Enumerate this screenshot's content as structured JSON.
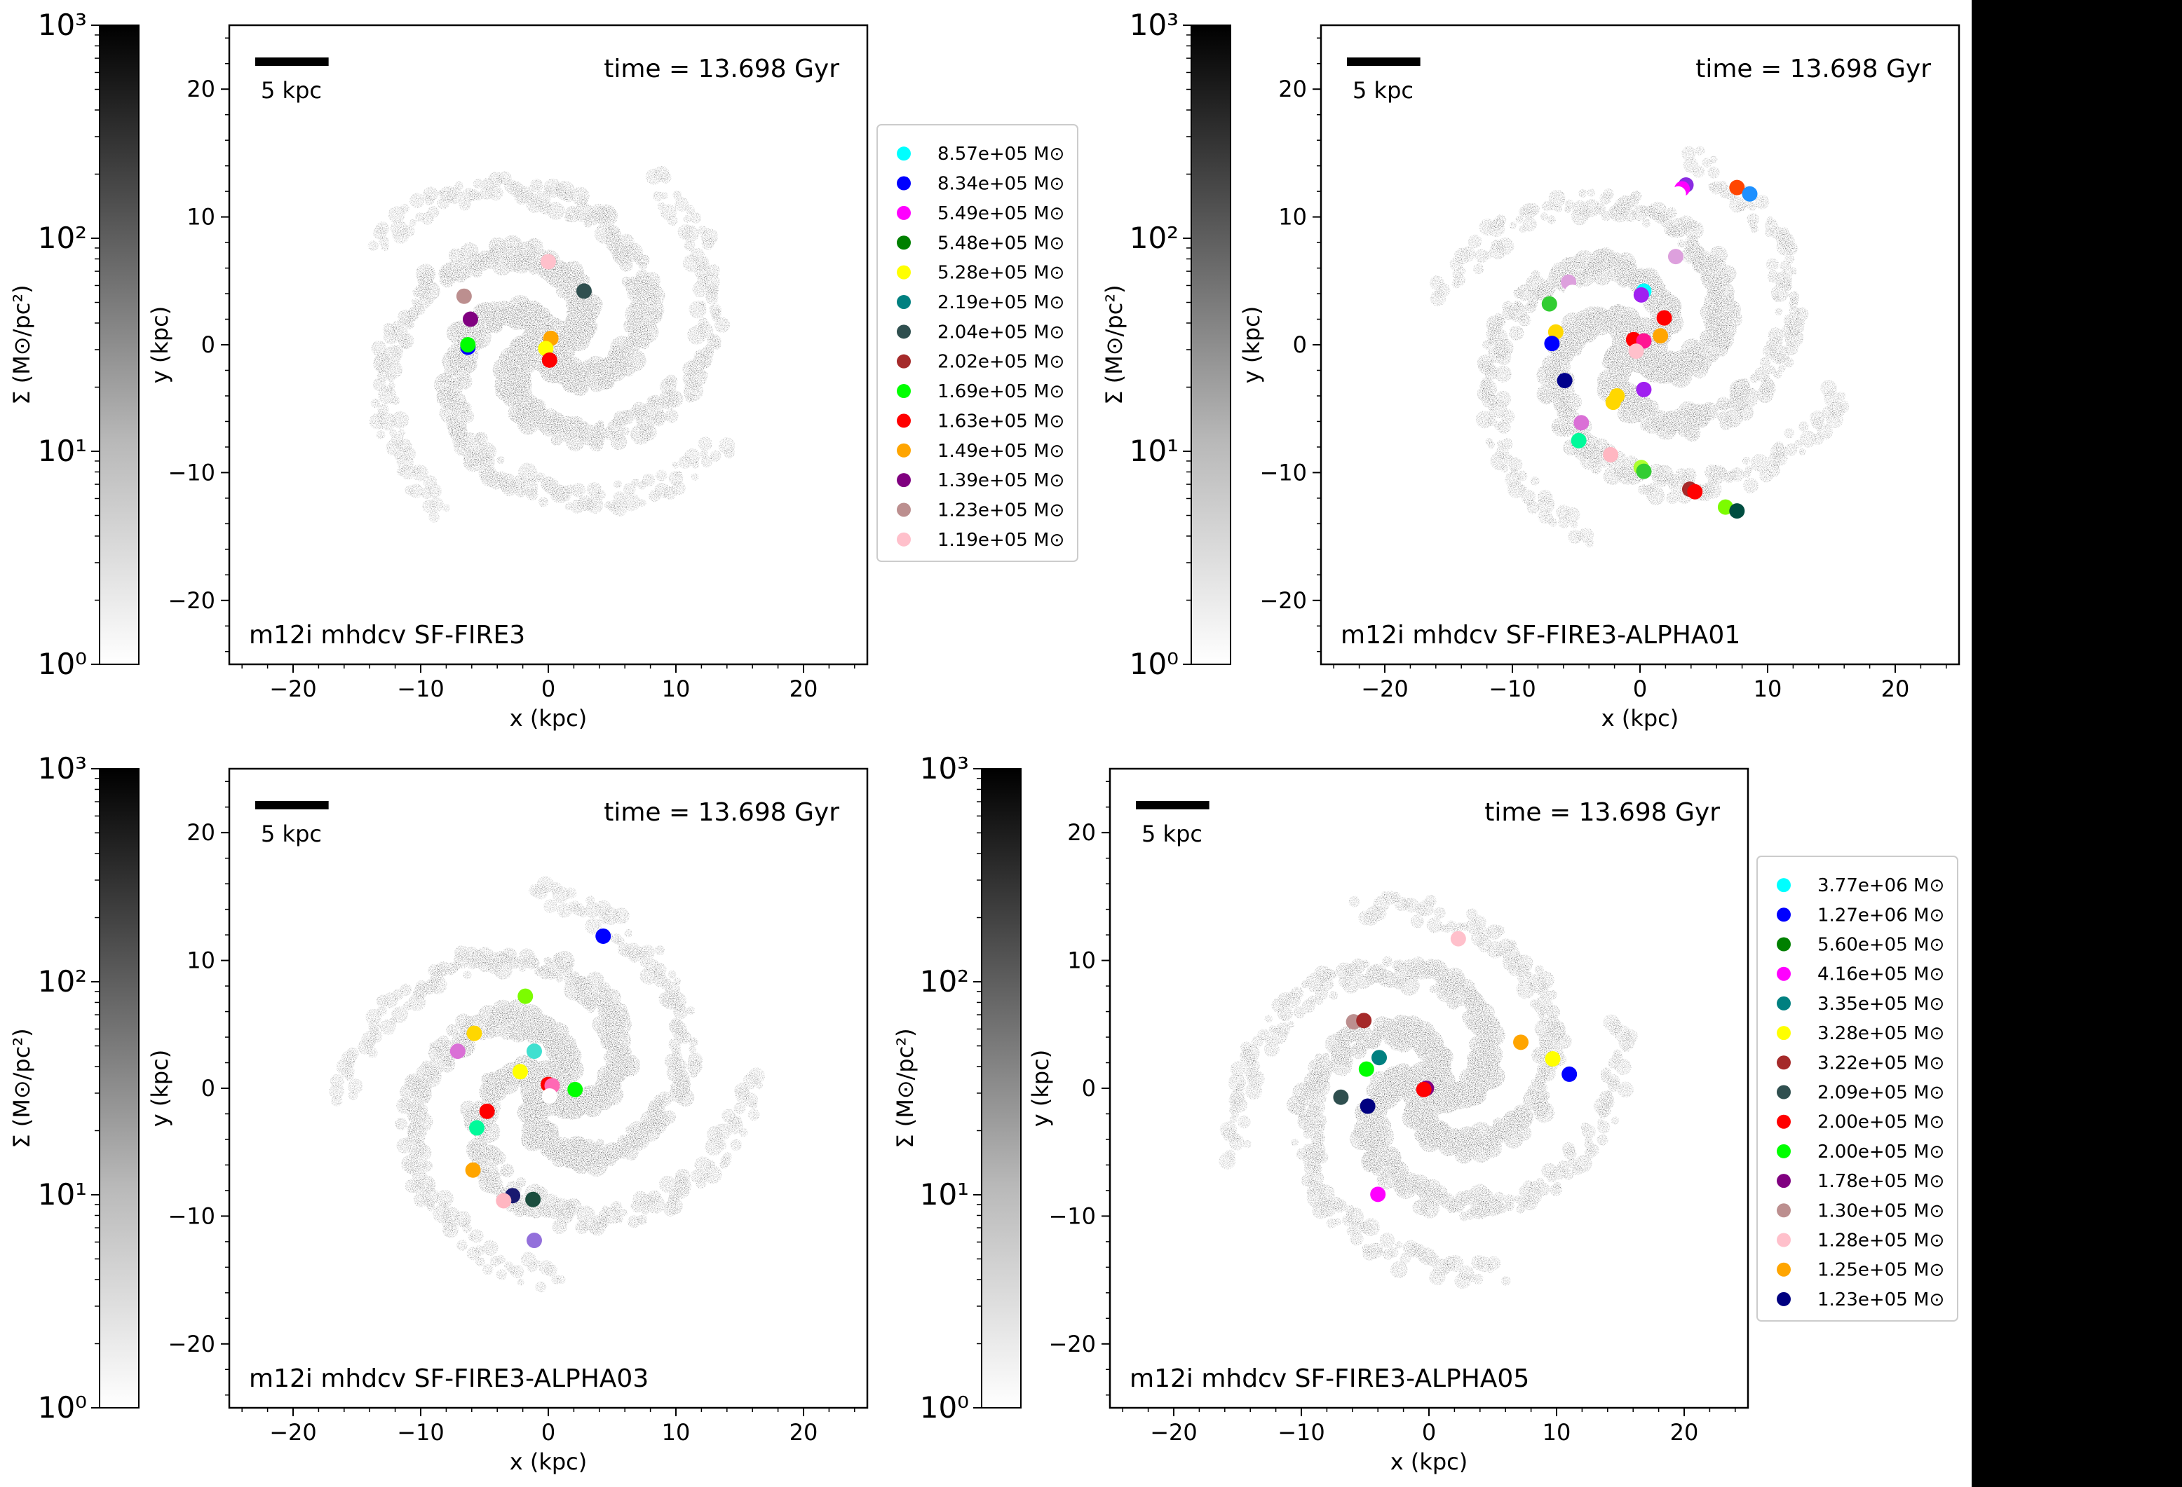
{
  "colorbar": {
    "label": "Σ (M⊙/pc²)",
    "ticks": [
      {
        "value": 1,
        "label": "10⁰"
      },
      {
        "value": 10,
        "label": "10¹"
      },
      {
        "value": 100,
        "label": "10²"
      },
      {
        "value": 1000,
        "label": "10³"
      }
    ],
    "range": [
      1,
      1000
    ],
    "scale": "log",
    "cmap": "white-to-black"
  },
  "scale_bar_label": "5 kpc",
  "scale_bar_length_kpc": 5,
  "chart_data": [
    {
      "type": "scatter",
      "title": "m12i mhdcv SF-FIRE3",
      "time_label": "time = 13.698 Gyr",
      "xlabel": "x (kpc)",
      "ylabel": "y (kpc)",
      "xlim": [
        -25,
        25
      ],
      "ylim": [
        -25,
        25
      ],
      "xticks": [
        -20,
        -10,
        0,
        10,
        20
      ],
      "yticks": [
        -20,
        -10,
        0,
        10,
        20
      ],
      "legend_placement": "outside-right",
      "legend": [
        {
          "label": "8.57e+05 M⊙",
          "color": "#00ffff"
        },
        {
          "label": "8.34e+05 M⊙",
          "color": "#0000ff"
        },
        {
          "label": "5.49e+05 M⊙",
          "color": "#ff00ff"
        },
        {
          "label": "5.48e+05 M⊙",
          "color": "#008000"
        },
        {
          "label": "5.28e+05 M⊙",
          "color": "#ffff00"
        },
        {
          "label": "2.19e+05 M⊙",
          "color": "#008080"
        },
        {
          "label": "2.04e+05 M⊙",
          "color": "#2f4f4f"
        },
        {
          "label": "2.02e+05 M⊙",
          "color": "#a52a2a"
        },
        {
          "label": "1.69e+05 M⊙",
          "color": "#00ff00"
        },
        {
          "label": "1.63e+05 M⊙",
          "color": "#ff0000"
        },
        {
          "label": "1.49e+05 M⊙",
          "color": "#ffa500"
        },
        {
          "label": "1.39e+05 M⊙",
          "color": "#800080"
        },
        {
          "label": "1.23e+05 M⊙",
          "color": "#bc8f8f"
        },
        {
          "label": "1.19e+05 M⊙",
          "color": "#ffc0cb"
        }
      ],
      "points": [
        {
          "x": 0.0,
          "y": 6.5,
          "color": "#ffc0cb"
        },
        {
          "x": -6.6,
          "y": 3.8,
          "color": "#bc8f8f"
        },
        {
          "x": -6.1,
          "y": 2.0,
          "color": "#800080"
        },
        {
          "x": -6.3,
          "y": -0.2,
          "color": "#0000ff"
        },
        {
          "x": -6.3,
          "y": 0.0,
          "color": "#00ff00"
        },
        {
          "x": 2.8,
          "y": 4.2,
          "color": "#2f4f4f"
        },
        {
          "x": 0.2,
          "y": 0.5,
          "color": "#ffa500"
        },
        {
          "x": -0.2,
          "y": -0.3,
          "color": "#ffff00"
        },
        {
          "x": 0.1,
          "y": -1.2,
          "color": "#ff0000"
        }
      ]
    },
    {
      "type": "scatter",
      "title": "m12i mhdcv SF-FIRE3-ALPHA01",
      "time_label": "time = 13.698 Gyr",
      "xlabel": "x (kpc)",
      "ylabel": "y (kpc)",
      "xlim": [
        -25,
        25
      ],
      "ylim": [
        -25,
        25
      ],
      "xticks": [
        -20,
        -10,
        0,
        10,
        20
      ],
      "yticks": [
        -20,
        -10,
        0,
        10,
        20
      ],
      "points": [
        {
          "x": 3.6,
          "y": 12.5,
          "color": "#8a2be2"
        },
        {
          "x": 3.3,
          "y": 12.2,
          "color": "#ff00ff"
        },
        {
          "x": 3.0,
          "y": 11.8,
          "color": "#ffffff"
        },
        {
          "x": 7.6,
          "y": 12.3,
          "color": "#ff4500"
        },
        {
          "x": 8.6,
          "y": 11.8,
          "color": "#1e90ff"
        },
        {
          "x": 2.8,
          "y": 6.9,
          "color": "#dda0dd"
        },
        {
          "x": 0.3,
          "y": 4.2,
          "color": "#00ffff"
        },
        {
          "x": 0.1,
          "y": 3.9,
          "color": "#a020f0"
        },
        {
          "x": -5.6,
          "y": 4.9,
          "color": "#dda0dd"
        },
        {
          "x": -5.3,
          "y": 4.1,
          "color": "#ffffff"
        },
        {
          "x": -7.1,
          "y": 3.2,
          "color": "#32cd32"
        },
        {
          "x": -6.6,
          "y": 1.0,
          "color": "#ffd700"
        },
        {
          "x": -6.9,
          "y": 0.1,
          "color": "#0000ff"
        },
        {
          "x": -0.5,
          "y": 0.4,
          "color": "#ff0000"
        },
        {
          "x": 0.3,
          "y": 0.3,
          "color": "#ff1493"
        },
        {
          "x": -0.3,
          "y": -0.5,
          "color": "#ffc0cb"
        },
        {
          "x": 1.9,
          "y": 2.1,
          "color": "#ff0000"
        },
        {
          "x": 1.6,
          "y": 0.7,
          "color": "#ffa500"
        },
        {
          "x": -5.9,
          "y": -2.8,
          "color": "#00008b"
        },
        {
          "x": -1.8,
          "y": -4.0,
          "color": "#ffd700"
        },
        {
          "x": -2.1,
          "y": -4.5,
          "color": "#ffd700"
        },
        {
          "x": 0.3,
          "y": -3.5,
          "color": "#a020f0"
        },
        {
          "x": -4.6,
          "y": -6.1,
          "color": "#da70d6"
        },
        {
          "x": -4.8,
          "y": -7.5,
          "color": "#00fa9a"
        },
        {
          "x": -2.3,
          "y": -8.6,
          "color": "#ffb6c1"
        },
        {
          "x": 0.1,
          "y": -9.6,
          "color": "#adff2f"
        },
        {
          "x": 0.3,
          "y": -9.9,
          "color": "#32cd32"
        },
        {
          "x": 3.9,
          "y": -11.3,
          "color": "#a52a2a"
        },
        {
          "x": 4.3,
          "y": -11.5,
          "color": "#ff0000"
        },
        {
          "x": 6.7,
          "y": -12.7,
          "color": "#7cfc00"
        },
        {
          "x": 7.6,
          "y": -13.0,
          "color": "#004d40"
        }
      ]
    },
    {
      "type": "scatter",
      "title": "m12i mhdcv SF-FIRE3-ALPHA03",
      "time_label": "time = 13.698 Gyr",
      "xlabel": "x (kpc)",
      "ylabel": "y (kpc)",
      "xlim": [
        -25,
        25
      ],
      "ylim": [
        -25,
        25
      ],
      "xticks": [
        -20,
        -10,
        0,
        10,
        20
      ],
      "yticks": [
        -20,
        -10,
        0,
        10,
        20
      ],
      "points": [
        {
          "x": 4.3,
          "y": 11.9,
          "color": "#0000ff"
        },
        {
          "x": -1.8,
          "y": 7.2,
          "color": "#7cfc00"
        },
        {
          "x": -5.8,
          "y": 4.3,
          "color": "#ffd700"
        },
        {
          "x": -7.1,
          "y": 2.9,
          "color": "#da70d6"
        },
        {
          "x": -1.1,
          "y": 2.9,
          "color": "#40e0d0"
        },
        {
          "x": -2.2,
          "y": 1.3,
          "color": "#ffff00"
        },
        {
          "x": -7.2,
          "y": 0.0,
          "color": "#ffffff"
        },
        {
          "x": 0.0,
          "y": 0.3,
          "color": "#ff0000"
        },
        {
          "x": 0.3,
          "y": 0.2,
          "color": "#ff69b4"
        },
        {
          "x": 0.1,
          "y": -0.6,
          "color": "#ffffff"
        },
        {
          "x": 2.1,
          "y": -0.1,
          "color": "#00ff00"
        },
        {
          "x": -4.8,
          "y": -1.8,
          "color": "#ff0000"
        },
        {
          "x": -5.6,
          "y": -3.1,
          "color": "#00fa9a"
        },
        {
          "x": -5.9,
          "y": -6.4,
          "color": "#ffa500"
        },
        {
          "x": -2.8,
          "y": -8.4,
          "color": "#191970"
        },
        {
          "x": -3.5,
          "y": -8.8,
          "color": "#ffb6c1"
        },
        {
          "x": -1.2,
          "y": -8.7,
          "color": "#1b4d3e"
        },
        {
          "x": -1.1,
          "y": -11.9,
          "color": "#9370db"
        }
      ]
    },
    {
      "type": "scatter",
      "title": "m12i mhdcv SF-FIRE3-ALPHA05",
      "time_label": "time = 13.698 Gyr",
      "xlabel": "x (kpc)",
      "ylabel": "y (kpc)",
      "xlim": [
        -25,
        25
      ],
      "ylim": [
        -25,
        25
      ],
      "xticks": [
        -20,
        -10,
        0,
        10,
        20
      ],
      "yticks": [
        -20,
        -10,
        0,
        10,
        20
      ],
      "legend_placement": "outside-right",
      "legend": [
        {
          "label": "3.77e+06 M⊙",
          "color": "#00ffff"
        },
        {
          "label": "1.27e+06 M⊙",
          "color": "#0000ff"
        },
        {
          "label": "5.60e+05 M⊙",
          "color": "#008000"
        },
        {
          "label": "4.16e+05 M⊙",
          "color": "#ff00ff"
        },
        {
          "label": "3.35e+05 M⊙",
          "color": "#008080"
        },
        {
          "label": "3.28e+05 M⊙",
          "color": "#ffff00"
        },
        {
          "label": "3.22e+05 M⊙",
          "color": "#a52a2a"
        },
        {
          "label": "2.09e+05 M⊙",
          "color": "#2f4f4f"
        },
        {
          "label": "2.00e+05 M⊙",
          "color": "#ff0000"
        },
        {
          "label": "2.00e+05 M⊙",
          "color": "#00ff00"
        },
        {
          "label": "1.78e+05 M⊙",
          "color": "#800080"
        },
        {
          "label": "1.30e+05 M⊙",
          "color": "#bc8f8f"
        },
        {
          "label": "1.28e+05 M⊙",
          "color": "#ffc0cb"
        },
        {
          "label": "1.25e+05 M⊙",
          "color": "#ffa500"
        },
        {
          "label": "1.23e+05 M⊙",
          "color": "#000080"
        }
      ],
      "points": [
        {
          "x": 2.3,
          "y": 11.7,
          "color": "#ffc0cb"
        },
        {
          "x": -5.9,
          "y": 5.2,
          "color": "#bc8f8f"
        },
        {
          "x": -5.1,
          "y": 5.3,
          "color": "#a52a2a"
        },
        {
          "x": -3.9,
          "y": 2.4,
          "color": "#008080"
        },
        {
          "x": -4.9,
          "y": 1.5,
          "color": "#00ff00"
        },
        {
          "x": -6.9,
          "y": -0.7,
          "color": "#2f4f4f"
        },
        {
          "x": -4.8,
          "y": -1.4,
          "color": "#000080"
        },
        {
          "x": -0.2,
          "y": 0.0,
          "color": "#800080"
        },
        {
          "x": -0.4,
          "y": -0.1,
          "color": "#ff0000"
        },
        {
          "x": 7.2,
          "y": 3.6,
          "color": "#ffa500"
        },
        {
          "x": 9.7,
          "y": 2.3,
          "color": "#ffff00"
        },
        {
          "x": 11.0,
          "y": 1.1,
          "color": "#0000ff"
        },
        {
          "x": -4.0,
          "y": -8.3,
          "color": "#ff00ff"
        }
      ]
    }
  ]
}
